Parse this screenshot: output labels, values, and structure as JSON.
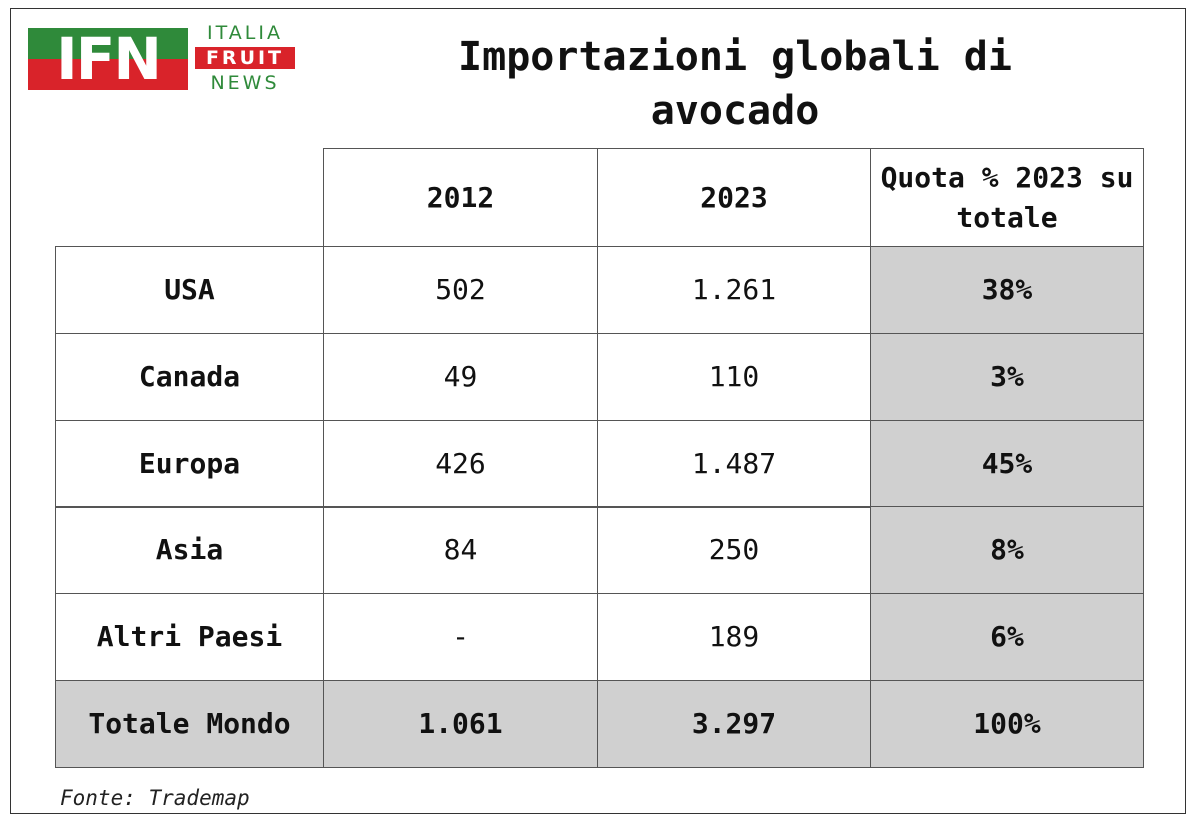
{
  "logo": {
    "mark": "IFN",
    "line1": "ITALIA",
    "line2": "FRUIT",
    "line3": "NEWS"
  },
  "title": "Importazioni globali di avocado",
  "table": {
    "header": [
      "2012",
      "2023",
      "Quota % 2023 su totale"
    ],
    "rows": [
      [
        "USA",
        "502",
        "1.261",
        "38%"
      ],
      [
        "Canada",
        "49",
        "110",
        "3%"
      ],
      [
        "Europa",
        "426",
        "1.487",
        "45%"
      ],
      [
        "Asia",
        "84",
        "250",
        "8%"
      ],
      [
        "Altri Paesi",
        "-",
        "189",
        "6%"
      ]
    ],
    "total": [
      "Totale Mondo",
      "1.061",
      "3.297",
      "100%"
    ]
  },
  "source": "Fonte: Trademap"
}
